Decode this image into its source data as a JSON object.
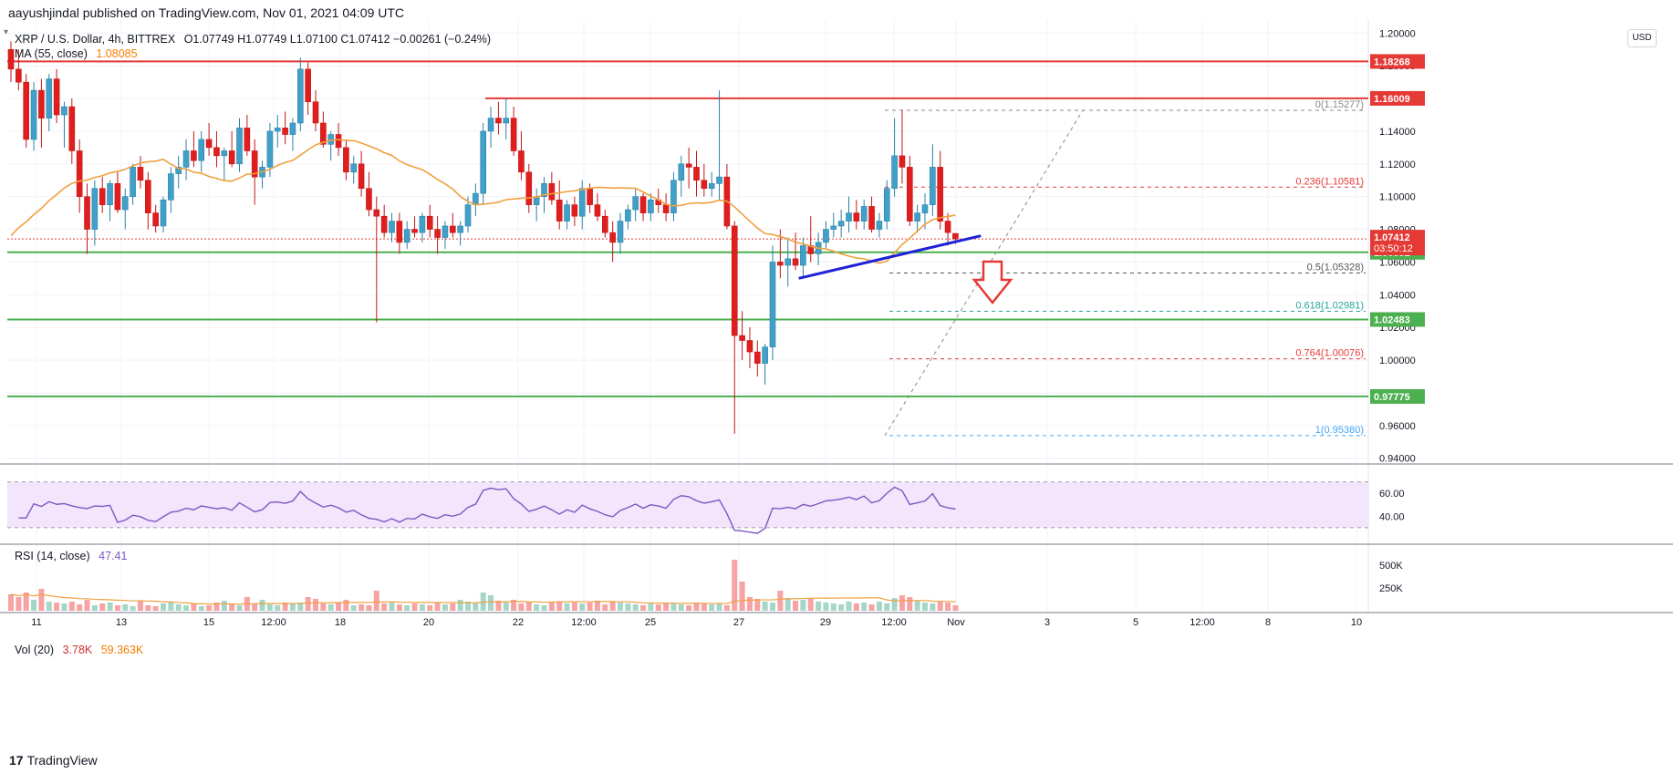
{
  "header": {
    "publisher": "aayushjindal published on TradingView.com, Nov 01, 2021 04:09 UTC"
  },
  "legend": {
    "symbol": "XRP / U.S. Dollar, 4h, BITTREX",
    "ohlc": "O1.07749  H1.07749  L1.07100  C1.07412  −0.00261 (−0.24%)",
    "ma_label": "MA (55, close)",
    "ma_value": "1.08085",
    "rsi_label": "RSI (14, close)",
    "rsi_value": "47.41",
    "vol_label": "Vol (20)",
    "vol_value1": "3.78K",
    "vol_value2": "59.363K"
  },
  "currency_button": "USD",
  "footer": {
    "logo": "17",
    "brand": "TradingView"
  },
  "colors": {
    "up": "#26a69a",
    "down": "#ef5350",
    "down_body": "#e01e1e",
    "ma": "#f0a040",
    "support": "#4caf50",
    "resistance": "#e53935",
    "trendline": "#1e22d6",
    "rsi": "#7e57c2"
  },
  "chart_data": [
    {
      "type": "candlestick",
      "title": "XRP / U.S. Dollar, 4h, BITTREX",
      "y_axis_ticks": [
        "1.20000",
        "1.18000",
        "1.16000",
        "1.14000",
        "1.12000",
        "1.10000",
        "1.08000",
        "1.06000",
        "1.04000",
        "1.02000",
        "1.00000",
        "0.98000",
        "0.96000",
        "0.94000"
      ],
      "x_axis_ticks": [
        "11",
        "13",
        "15",
        "12:00",
        "18",
        "20",
        "22",
        "12:00",
        "25",
        "27",
        "29",
        "12:00",
        "Nov",
        "3",
        "5",
        "12:00",
        "8",
        "10"
      ],
      "ylim": [
        0.937,
        1.208
      ],
      "current_price": "1.07412",
      "countdown": "03:50:12",
      "horizontal_levels": [
        {
          "label": "1.18268",
          "value": 1.18268,
          "kind": "resistance"
        },
        {
          "label": "1.16009",
          "value": 1.16009,
          "kind": "resistance"
        },
        {
          "label": "1.06592",
          "value": 1.06592,
          "kind": "support"
        },
        {
          "label": "1.02483",
          "value": 1.02483,
          "kind": "support"
        },
        {
          "label": "0.97775",
          "value": 0.97775,
          "kind": "support"
        }
      ],
      "fibonacci": [
        {
          "label": "0(1.15277)",
          "value": 1.15277
        },
        {
          "label": "0.236(1.10581)",
          "value": 1.10581
        },
        {
          "label": "0.5(1.05328)",
          "value": 1.05328
        },
        {
          "label": "0.618(1.02981)",
          "value": 1.02981
        },
        {
          "label": "0.764(1.00076)",
          "value": 1.00076
        },
        {
          "label": "1(0.95380)",
          "value": 0.9538
        }
      ],
      "trendline": {
        "from": [
          0.557,
          1.05
        ],
        "to": [
          0.684,
          1.076
        ]
      },
      "candles": [
        [
          1.19,
          1.195,
          1.17,
          1.178
        ],
        [
          1.178,
          1.19,
          1.165,
          1.17
        ],
        [
          1.17,
          1.175,
          1.13,
          1.135
        ],
        [
          1.135,
          1.17,
          1.128,
          1.165
        ],
        [
          1.165,
          1.172,
          1.13,
          1.148
        ],
        [
          1.148,
          1.175,
          1.14,
          1.172
        ],
        [
          1.172,
          1.178,
          1.145,
          1.15
        ],
        [
          1.15,
          1.158,
          1.13,
          1.155
        ],
        [
          1.155,
          1.16,
          1.12,
          1.128
        ],
        [
          1.128,
          1.135,
          1.09,
          1.1
        ],
        [
          1.1,
          1.108,
          1.065,
          1.08
        ],
        [
          1.08,
          1.11,
          1.07,
          1.105
        ],
        [
          1.105,
          1.112,
          1.09,
          1.095
        ],
        [
          1.095,
          1.11,
          1.085,
          1.108
        ],
        [
          1.108,
          1.115,
          1.09,
          1.092
        ],
        [
          1.092,
          1.105,
          1.08,
          1.1
        ],
        [
          1.1,
          1.12,
          1.095,
          1.118
        ],
        [
          1.118,
          1.125,
          1.105,
          1.11
        ],
        [
          1.11,
          1.115,
          1.08,
          1.09
        ],
        [
          1.09,
          1.095,
          1.078,
          1.082
        ],
        [
          1.082,
          1.1,
          1.078,
          1.098
        ],
        [
          1.098,
          1.118,
          1.09,
          1.114
        ],
        [
          1.114,
          1.125,
          1.105,
          1.118
        ],
        [
          1.118,
          1.135,
          1.11,
          1.128
        ],
        [
          1.128,
          1.14,
          1.118,
          1.122
        ],
        [
          1.122,
          1.14,
          1.115,
          1.135
        ],
        [
          1.135,
          1.145,
          1.125,
          1.13
        ],
        [
          1.13,
          1.14,
          1.118,
          1.125
        ],
        [
          1.125,
          1.13,
          1.11,
          1.128
        ],
        [
          1.128,
          1.14,
          1.118,
          1.12
        ],
        [
          1.12,
          1.148,
          1.115,
          1.142
        ],
        [
          1.142,
          1.15,
          1.125,
          1.128
        ],
        [
          1.128,
          1.135,
          1.095,
          1.112
        ],
        [
          1.112,
          1.122,
          1.105,
          1.118
        ],
        [
          1.118,
          1.145,
          1.112,
          1.14
        ],
        [
          1.14,
          1.15,
          1.13,
          1.142
        ],
        [
          1.142,
          1.152,
          1.132,
          1.138
        ],
        [
          1.138,
          1.148,
          1.128,
          1.145
        ],
        [
          1.145,
          1.185,
          1.14,
          1.178
        ],
        [
          1.178,
          1.182,
          1.15,
          1.158
        ],
        [
          1.158,
          1.165,
          1.14,
          1.145
        ],
        [
          1.145,
          1.152,
          1.13,
          1.132
        ],
        [
          1.132,
          1.14,
          1.122,
          1.138
        ],
        [
          1.138,
          1.145,
          1.125,
          1.13
        ],
        [
          1.13,
          1.135,
          1.11,
          1.115
        ],
        [
          1.115,
          1.125,
          1.108,
          1.12
        ],
        [
          1.12,
          1.128,
          1.1,
          1.105
        ],
        [
          1.105,
          1.115,
          1.088,
          1.092
        ],
        [
          1.092,
          1.1,
          1.023,
          1.088
        ],
        [
          1.088,
          1.095,
          1.075,
          1.078
        ],
        [
          1.078,
          1.09,
          1.072,
          1.085
        ],
        [
          1.085,
          1.09,
          1.065,
          1.072
        ],
        [
          1.072,
          1.085,
          1.068,
          1.08
        ],
        [
          1.08,
          1.088,
          1.075,
          1.078
        ],
        [
          1.078,
          1.09,
          1.072,
          1.088
        ],
        [
          1.088,
          1.095,
          1.075,
          1.08
        ],
        [
          1.08,
          1.088,
          1.065,
          1.075
        ],
        [
          1.075,
          1.085,
          1.068,
          1.082
        ],
        [
          1.082,
          1.09,
          1.075,
          1.078
        ],
        [
          1.078,
          1.085,
          1.07,
          1.082
        ],
        [
          1.082,
          1.1,
          1.078,
          1.095
        ],
        [
          1.095,
          1.108,
          1.088,
          1.102
        ],
        [
          1.102,
          1.145,
          1.095,
          1.14
        ],
        [
          1.14,
          1.155,
          1.13,
          1.148
        ],
        [
          1.148,
          1.158,
          1.138,
          1.145
        ],
        [
          1.145,
          1.16,
          1.135,
          1.148
        ],
        [
          1.148,
          1.155,
          1.125,
          1.128
        ],
        [
          1.128,
          1.14,
          1.11,
          1.115
        ],
        [
          1.115,
          1.12,
          1.09,
          1.095
        ],
        [
          1.095,
          1.105,
          1.085,
          1.1
        ],
        [
          1.1,
          1.112,
          1.09,
          1.108
        ],
        [
          1.108,
          1.115,
          1.095,
          1.098
        ],
        [
          1.098,
          1.11,
          1.08,
          1.085
        ],
        [
          1.085,
          1.098,
          1.08,
          1.095
        ],
        [
          1.095,
          1.1,
          1.082,
          1.088
        ],
        [
          1.088,
          1.11,
          1.08,
          1.105
        ],
        [
          1.105,
          1.108,
          1.09,
          1.095
        ],
        [
          1.095,
          1.102,
          1.085,
          1.088
        ],
        [
          1.088,
          1.092,
          1.075,
          1.078
        ],
        [
          1.078,
          1.085,
          1.06,
          1.072
        ],
        [
          1.072,
          1.09,
          1.065,
          1.085
        ],
        [
          1.085,
          1.095,
          1.08,
          1.092
        ],
        [
          1.092,
          1.105,
          1.085,
          1.1
        ],
        [
          1.1,
          1.102,
          1.085,
          1.09
        ],
        [
          1.09,
          1.102,
          1.085,
          1.098
        ],
        [
          1.098,
          1.105,
          1.09,
          1.095
        ],
        [
          1.095,
          1.102,
          1.085,
          1.09
        ],
        [
          1.09,
          1.115,
          1.085,
          1.11
        ],
        [
          1.11,
          1.125,
          1.1,
          1.12
        ],
        [
          1.12,
          1.13,
          1.105,
          1.118
        ],
        [
          1.118,
          1.128,
          1.1,
          1.11
        ],
        [
          1.11,
          1.12,
          1.1,
          1.105
        ],
        [
          1.105,
          1.115,
          1.1,
          1.108
        ],
        [
          1.108,
          1.165,
          1.098,
          1.112
        ],
        [
          1.112,
          1.12,
          1.08,
          1.082
        ],
        [
          1.082,
          1.085,
          0.955,
          1.015
        ],
        [
          1.015,
          1.03,
          1.0,
          1.012
        ],
        [
          1.012,
          1.02,
          0.995,
          1.005
        ],
        [
          1.005,
          1.012,
          0.99,
          0.998
        ],
        [
          0.998,
          1.01,
          0.985,
          1.008
        ],
        [
          1.008,
          1.07,
          1.0,
          1.06
        ],
        [
          1.06,
          1.08,
          1.05,
          1.058
        ],
        [
          1.058,
          1.075,
          1.045,
          1.062
        ],
        [
          1.062,
          1.078,
          1.055,
          1.058
        ],
        [
          1.058,
          1.075,
          1.05,
          1.07
        ],
        [
          1.07,
          1.088,
          1.06,
          1.065
        ],
        [
          1.065,
          1.078,
          1.058,
          1.072
        ],
        [
          1.072,
          1.085,
          1.068,
          1.08
        ],
        [
          1.08,
          1.09,
          1.075,
          1.082
        ],
        [
          1.082,
          1.092,
          1.075,
          1.085
        ],
        [
          1.085,
          1.1,
          1.078,
          1.09
        ],
        [
          1.09,
          1.098,
          1.08,
          1.085
        ],
        [
          1.085,
          1.098,
          1.08,
          1.094
        ],
        [
          1.094,
          1.1,
          1.078,
          1.08
        ],
        [
          1.08,
          1.09,
          1.075,
          1.085
        ],
        [
          1.085,
          1.11,
          1.08,
          1.105
        ],
        [
          1.105,
          1.148,
          1.1,
          1.125
        ],
        [
          1.125,
          1.153,
          1.108,
          1.118
        ],
        [
          1.118,
          1.125,
          1.082,
          1.085
        ],
        [
          1.085,
          1.095,
          1.078,
          1.09
        ],
        [
          1.09,
          1.102,
          1.08,
          1.095
        ],
        [
          1.095,
          1.132,
          1.088,
          1.118
        ],
        [
          1.118,
          1.128,
          1.08,
          1.085
        ],
        [
          1.085,
          1.09,
          1.07,
          1.078
        ],
        [
          1.07749,
          1.07749,
          1.071,
          1.07412
        ]
      ],
      "rsi": {
        "label": "RSI (14, close)",
        "current": 47.41,
        "levels": [
          70,
          30
        ],
        "ticks": [
          "60.00",
          "40.00"
        ],
        "ylim": [
          18,
          84
        ]
      },
      "volume": {
        "label": "Vol (20)",
        "ticks": [
          "500K",
          "250K"
        ],
        "ymax": 700000,
        "values": [
          180,
          150,
          200,
          120,
          240,
          100,
          90,
          80,
          100,
          70,
          120,
          60,
          80,
          90,
          60,
          70,
          50,
          110,
          60,
          50,
          80,
          90,
          70,
          60,
          80,
          50,
          60,
          90,
          110,
          70,
          60,
          150,
          80,
          120,
          70,
          60,
          90,
          80,
          90,
          150,
          130,
          80,
          70,
          90,
          120,
          60,
          70,
          60,
          220,
          80,
          90,
          70,
          60,
          80,
          70,
          60,
          90,
          70,
          80,
          120,
          100,
          90,
          200,
          170,
          110,
          90,
          120,
          80,
          100,
          70,
          60,
          90,
          100,
          80,
          90,
          80,
          90,
          110,
          70,
          100,
          90,
          80,
          70,
          60,
          80,
          70,
          90,
          80,
          70,
          60,
          90,
          80,
          70,
          80,
          60,
          560,
          320,
          150,
          130,
          100,
          90,
          220,
          140,
          110,
          120,
          130,
          100,
          90,
          80,
          70,
          100,
          80,
          90,
          70,
          100,
          80,
          140,
          170,
          150,
          110,
          90,
          80,
          100,
          90,
          60
        ]
      }
    }
  ]
}
